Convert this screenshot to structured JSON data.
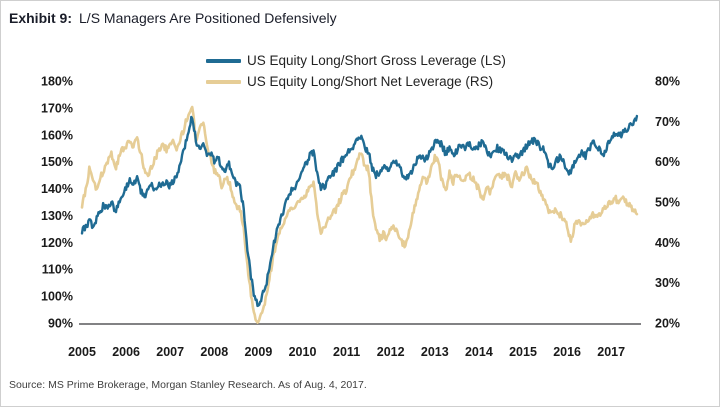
{
  "header": {
    "exhibit_label": "Exhibit 9:",
    "title": "L/S Managers Are Positioned Defensively"
  },
  "footer": {
    "source": "Source: MS Prime Brokerage, Morgan Stanley Research. As of Aug. 4, 2017."
  },
  "colors": {
    "gross_line": "#1f6b93",
    "net_line": "#e6cd96",
    "axis_line": "#58595b",
    "tick_text": "#1a1a1a"
  },
  "chart_data": {
    "type": "line",
    "title": "L/S Managers Are Positioned Defensively",
    "x_tick_labels": [
      "2005",
      "2006",
      "2007",
      "2008",
      "2009",
      "2010",
      "2011",
      "2012",
      "2013",
      "2014",
      "2015",
      "2016",
      "2017"
    ],
    "left_axis": {
      "tick_labels": [
        "180%",
        "170%",
        "160%",
        "150%",
        "140%",
        "130%",
        "120%",
        "110%",
        "100%",
        "90%"
      ],
      "range": [
        90,
        180
      ]
    },
    "right_axis": {
      "tick_labels": [
        "80%",
        "70%",
        "60%",
        "50%",
        "40%",
        "30%",
        "20%"
      ],
      "range": [
        20,
        80
      ]
    },
    "x_range": [
      2005.0,
      2017.7
    ],
    "grid": "off",
    "legend_position": "top-center",
    "x_start": 2005.0,
    "x_step_years": 0.08333,
    "series": [
      {
        "name": "US Equity Long/Short Gross Leverage (LS)",
        "axis": "left",
        "unit": "%",
        "color": "#1f6b93",
        "values": [
          124,
          126,
          128,
          126,
          129,
          132,
          134,
          133,
          135,
          131,
          134,
          137,
          140,
          143,
          141,
          144,
          139,
          137,
          139,
          141,
          140,
          142,
          141,
          142,
          141,
          143,
          145,
          150,
          156,
          162,
          167,
          158,
          154,
          157,
          152,
          153,
          150,
          152,
          148,
          147,
          149,
          146,
          142,
          140,
          133,
          118,
          107,
          99,
          97,
          100,
          104,
          110,
          118,
          124,
          128,
          133,
          137,
          139,
          141,
          144,
          147,
          149,
          152,
          154,
          146,
          140,
          141,
          143,
          145,
          147,
          149,
          151,
          152,
          155,
          156,
          158,
          159,
          155,
          154,
          147,
          145,
          146,
          148,
          147,
          148,
          150,
          149,
          146,
          143,
          145,
          147,
          150,
          152,
          151,
          152,
          154,
          157,
          158,
          156,
          153,
          155,
          152,
          154,
          156,
          155,
          157,
          156,
          155,
          156,
          157,
          155,
          152,
          154,
          155,
          154,
          153,
          152,
          150,
          153,
          152,
          154,
          156,
          157,
          158,
          157,
          155,
          154,
          149,
          147,
          150,
          152,
          150,
          147,
          146,
          150,
          152,
          153,
          152,
          155,
          157,
          156,
          154,
          153,
          156,
          158,
          160,
          161,
          160,
          162,
          163,
          165,
          167
        ]
      },
      {
        "name": "US Equity Long/Short Net Leverage (RS)",
        "axis": "right",
        "unit": "%",
        "color": "#e6cd96",
        "values": [
          49,
          53,
          58,
          55,
          53,
          56,
          58,
          60,
          62,
          58,
          61,
          63,
          64,
          65,
          64,
          66,
          62,
          58,
          57,
          59,
          61,
          63,
          64,
          63,
          64,
          65,
          63,
          66,
          69,
          72,
          74,
          65,
          68,
          70,
          64,
          61,
          58,
          57,
          54,
          56,
          55,
          52,
          49,
          48,
          44,
          34,
          27,
          22,
          20,
          23,
          26,
          31,
          36,
          40,
          43,
          45,
          47,
          48,
          49,
          50,
          51,
          52,
          54,
          55,
          47,
          42,
          44,
          46,
          47,
          48,
          50,
          52,
          53,
          56,
          58,
          61,
          62,
          59,
          58,
          48,
          43,
          41,
          42,
          41,
          43,
          44,
          42,
          40,
          39,
          43,
          47,
          50,
          54,
          56,
          55,
          58,
          61,
          60,
          55,
          53,
          57,
          55,
          57,
          56,
          55,
          57,
          56,
          55,
          53,
          50,
          54,
          52,
          55,
          57,
          56,
          57,
          56,
          54,
          57,
          56,
          57,
          58,
          56,
          55,
          54,
          52,
          50,
          48,
          47,
          48,
          47,
          46,
          44,
          40,
          44,
          45,
          44,
          45,
          46,
          47,
          46,
          47,
          48,
          49,
          50,
          51,
          50,
          51,
          50,
          49,
          48,
          47
        ]
      }
    ]
  }
}
